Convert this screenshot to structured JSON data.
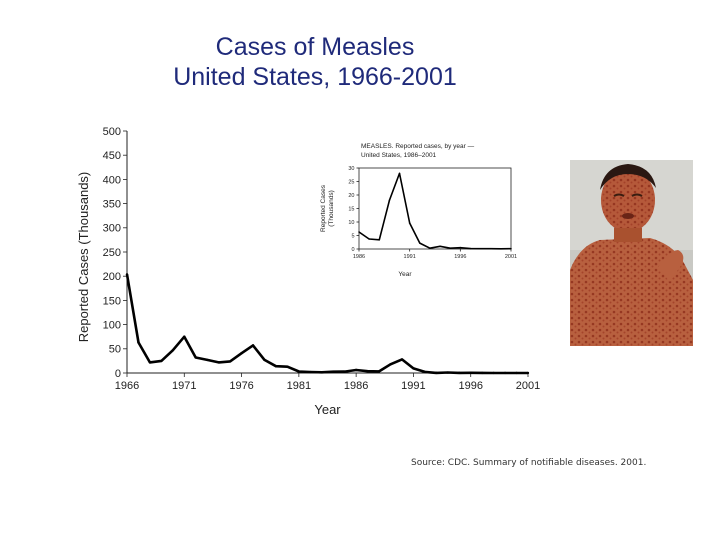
{
  "header": {
    "title_line1": "Cases of Measles",
    "title_line2": "United States, 1966-2001"
  },
  "source_note": "Source:  CDC. Summary of notifiable diseases. 2001.",
  "photo": {
    "description_icon": "child-with-measles-rash-photo"
  },
  "colors": {
    "title": "#1f2a7a",
    "line": "#000000"
  },
  "chart_data": [
    {
      "type": "line",
      "title": "",
      "xlabel": "Year",
      "ylabel": "Reported Cases (Thousands)",
      "xlim": [
        1966,
        2001
      ],
      "ylim": [
        0,
        500
      ],
      "xticks": [
        "1966",
        "1971",
        "1976",
        "1981",
        "1986",
        "1991",
        "1996",
        "2001"
      ],
      "yticks": [
        "0",
        "50",
        "100",
        "150",
        "200",
        "250",
        "300",
        "350",
        "400",
        "450",
        "500"
      ],
      "series": [
        {
          "name": "Reported cases",
          "x": [
            1966,
            1967,
            1968,
            1969,
            1970,
            1971,
            1972,
            1973,
            1974,
            1975,
            1976,
            1977,
            1978,
            1979,
            1980,
            1981,
            1982,
            1983,
            1984,
            1985,
            1986,
            1987,
            1988,
            1989,
            1990,
            1991,
            1992,
            1993,
            1994,
            1995,
            1996,
            1997,
            1998,
            1999,
            2000,
            2001
          ],
          "y": [
            204,
            63,
            22,
            25,
            47,
            75,
            32,
            27,
            22,
            24,
            41,
            57,
            27,
            14,
            13,
            3,
            2,
            1.5,
            2.6,
            2.8,
            6.3,
            3.7,
            3.4,
            18,
            28,
            9.6,
            2.2,
            0.3,
            1,
            0.3,
            0.5,
            0.14,
            0.1,
            0.1,
            0.09,
            0.1
          ]
        }
      ]
    },
    {
      "type": "line",
      "title": "MEASLES. Reported cases, by year — United States, 1986–2001",
      "title_line1": "MEASLES. Reported cases, by year —",
      "title_line2": "United States, 1986–2001",
      "xlabel": "Year",
      "ylabel": "Reported Cases (Thousands)",
      "ylabel_line1": "Reported Cases",
      "ylabel_line2": "(Thousands)",
      "xlim": [
        1986,
        2001
      ],
      "ylim": [
        0,
        30
      ],
      "xticks": [
        "1986",
        "1991",
        "1996",
        "2001"
      ],
      "yticks": [
        "0",
        "5",
        "10",
        "15",
        "20",
        "25",
        "30"
      ],
      "series": [
        {
          "name": "Reported cases",
          "x": [
            1986,
            1987,
            1988,
            1989,
            1990,
            1991,
            1992,
            1993,
            1994,
            1995,
            1996,
            1997,
            1998,
            1999,
            2000,
            2001
          ],
          "y": [
            6.3,
            3.7,
            3.4,
            18,
            28,
            9.6,
            2.2,
            0.3,
            1,
            0.3,
            0.5,
            0.14,
            0.1,
            0.1,
            0.09,
            0.1
          ]
        }
      ]
    }
  ]
}
